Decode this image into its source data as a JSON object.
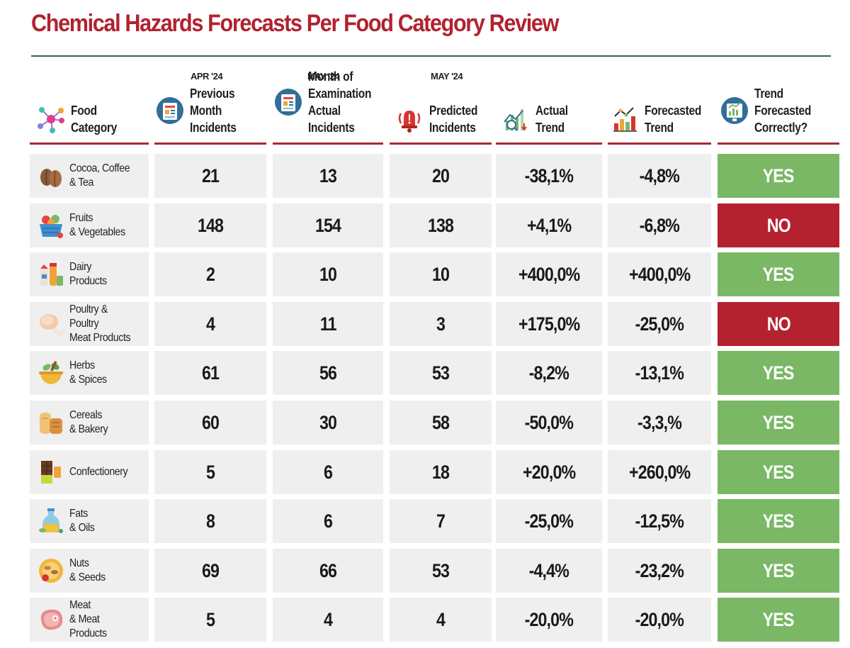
{
  "title": "Chemical Hazards Forecasts Per Food Category Review",
  "months": {
    "previous": "APR '24",
    "examination": "MAY '24",
    "predicted": "MAY '24"
  },
  "columns": {
    "food": "Food\nCategory",
    "previous": "Previous Month\nIncidents",
    "actual": "Month of\nExamination\nActual Incidents",
    "predicted": "Predicted\nIncidents",
    "actual_trend": "Actual\nTrend",
    "forecasted_trend": "Forecasted\nTrend",
    "correct": "Trend Forecasted\nCorrectly?"
  },
  "colors": {
    "title": "#b0232f",
    "yes": "#7ab865",
    "no": "#b5222f",
    "cell": "#efefef",
    "rule": "#a52a33"
  },
  "rows": [
    {
      "icon": "cocoa-beans-icon",
      "category": "Cocoa, Coffee\n& Tea",
      "previous": "21",
      "actual": "13",
      "predicted": "20",
      "actual_trend": "-38,1%",
      "forecasted_trend": "-4,8%",
      "correct": "YES"
    },
    {
      "icon": "fruit-basket-icon",
      "category": "Fruits\n& Vegetables",
      "previous": "148",
      "actual": "154",
      "predicted": "138",
      "actual_trend": "+4,1%",
      "forecasted_trend": "-6,8%",
      "correct": "NO"
    },
    {
      "icon": "dairy-icon",
      "category": "Dairy\nProducts",
      "previous": "2",
      "actual": "10",
      "predicted": "10",
      "actual_trend": "+400,0%",
      "forecasted_trend": "+400,0%",
      "correct": "YES"
    },
    {
      "icon": "chicken-leg-icon",
      "category": "Poultry & Poultry\nMeat Products",
      "previous": "4",
      "actual": "11",
      "predicted": "3",
      "actual_trend": "+175,0%",
      "forecasted_trend": "-25,0%",
      "correct": "NO"
    },
    {
      "icon": "mortar-herbs-icon",
      "category": "Herbs\n& Spices",
      "previous": "61",
      "actual": "56",
      "predicted": "53",
      "actual_trend": "-8,2%",
      "forecasted_trend": "-13,1%",
      "correct": "YES"
    },
    {
      "icon": "bread-icon",
      "category": "Cereals\n& Bakery",
      "previous": "60",
      "actual": "30",
      "predicted": "58",
      "actual_trend": "-50,0%",
      "forecasted_trend": "-3,3,%",
      "correct": "YES"
    },
    {
      "icon": "chocolate-icon",
      "category": "Confectionery",
      "previous": "5",
      "actual": "6",
      "predicted": "18",
      "actual_trend": "+20,0%",
      "forecasted_trend": "+260,0%",
      "correct": "YES"
    },
    {
      "icon": "oil-bottle-icon",
      "category": "Fats\n& Oils",
      "previous": "8",
      "actual": "6",
      "predicted": "7",
      "actual_trend": "-25,0%",
      "forecasted_trend": "-12,5%",
      "correct": "YES"
    },
    {
      "icon": "nuts-icon",
      "category": "Nuts\n& Seeds",
      "previous": "69",
      "actual": "66",
      "predicted": "53",
      "actual_trend": "-4,4%",
      "forecasted_trend": "-23,2%",
      "correct": "YES"
    },
    {
      "icon": "steak-icon",
      "category": "Meat\n& Meat Products",
      "previous": "5",
      "actual": "4",
      "predicted": "4",
      "actual_trend": "-20,0%",
      "forecasted_trend": "-20,0%",
      "correct": "YES"
    }
  ]
}
